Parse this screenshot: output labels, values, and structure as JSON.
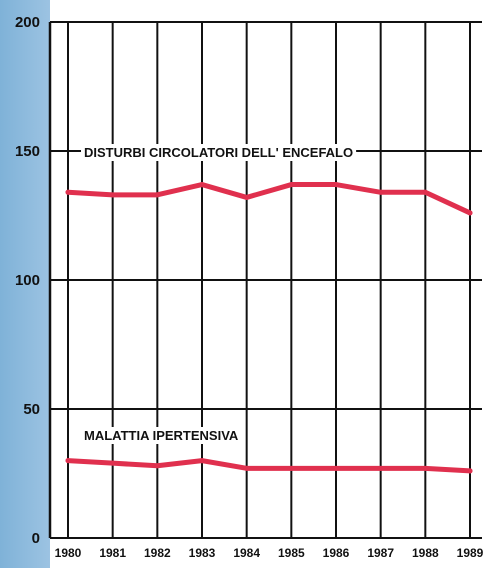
{
  "chart_data": {
    "type": "line",
    "title": "",
    "xlabel": "",
    "ylabel": "",
    "ylim": [
      0,
      200
    ],
    "yticks": [
      "0",
      "50",
      "100",
      "150",
      "200"
    ],
    "categories": [
      "1980",
      "1981",
      "1982",
      "1983",
      "1984",
      "1985",
      "1986",
      "1987",
      "1988",
      "1989"
    ],
    "grid": true,
    "line_color": "#e0304e",
    "series": [
      {
        "name": "DISTURBI CIRCOLATORI DELL' ENCEFALO",
        "values": [
          134,
          133,
          133,
          137,
          132,
          137,
          137,
          134,
          134,
          126
        ]
      },
      {
        "name": "MALATTIA IPERTENSIVA",
        "values": [
          30,
          29,
          28,
          30,
          27,
          27,
          27,
          27,
          27,
          26
        ]
      }
    ]
  }
}
